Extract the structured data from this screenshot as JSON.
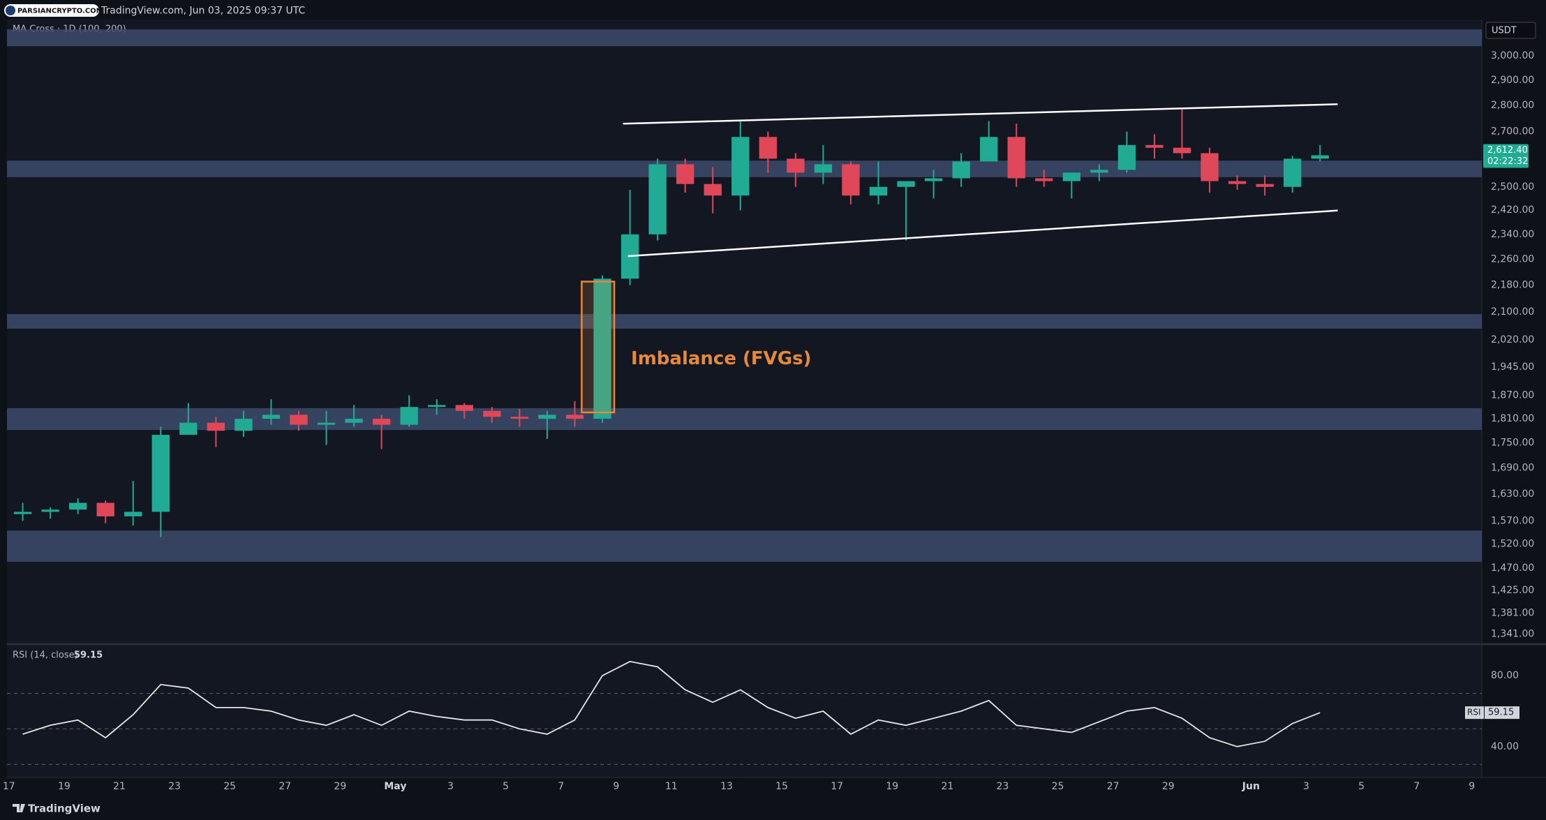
{
  "header": {
    "logo": "PARSIANCRYPTO.COM",
    "source": "TradingView.com, Jun 03, 2025 09:37 UTC"
  },
  "footer": "TradingView",
  "chart_data": [
    {
      "type": "candlestick",
      "indicator_label": "MA Cross · 1D (100, 200)",
      "currency": "USDT",
      "up_color": "#22ab94",
      "down_color": "#e0485a",
      "zone_color": "#3d4b6b",
      "log_scale": true,
      "xlim": [
        -0.07,
        53.36
      ],
      "ylim": [
        1325,
        3156
      ],
      "yticks": [
        {
          "value": 3000,
          "label": "3,000.00"
        },
        {
          "value": 2900,
          "label": "2,900.00"
        },
        {
          "value": 2800,
          "label": "2,800.00"
        },
        {
          "value": 2700,
          "label": "2,700.00"
        },
        {
          "value": 2500,
          "label": "2,500.00"
        },
        {
          "value": 2420,
          "label": "2,420.00"
        },
        {
          "value": 2340,
          "label": "2,340.00"
        },
        {
          "value": 2260,
          "label": "2,260.00"
        },
        {
          "value": 2180,
          "label": "2,180.00"
        },
        {
          "value": 2100,
          "label": "2,100.00"
        },
        {
          "value": 2020,
          "label": "2,020.00"
        },
        {
          "value": 1945,
          "label": "1,945.00"
        },
        {
          "value": 1870,
          "label": "1,870.00"
        },
        {
          "value": 1810,
          "label": "1,810.00"
        },
        {
          "value": 1750,
          "label": "1,750.00"
        },
        {
          "value": 1690,
          "label": "1,690.00"
        },
        {
          "value": 1630,
          "label": "1,630.00"
        },
        {
          "value": 1570,
          "label": "1,570.00"
        },
        {
          "value": 1520,
          "label": "1,520.00"
        },
        {
          "value": 1470,
          "label": "1,470.00"
        },
        {
          "value": 1425,
          "label": "1,425.00"
        },
        {
          "value": 1381,
          "label": "1,381.00"
        },
        {
          "value": 1341,
          "label": "1,341.00"
        }
      ],
      "open": [
        1585,
        1590,
        1595,
        1610,
        1580,
        1590,
        1770,
        1800,
        1780,
        1810,
        1820,
        1795,
        1800,
        1810,
        1795,
        1840,
        1845,
        1830,
        1815,
        1810,
        1820,
        1810,
        2200,
        2340,
        2580,
        2510,
        2470,
        2680,
        2600,
        2550,
        2580,
        2470,
        2500,
        2520,
        2530,
        2590,
        2680,
        2530,
        2520,
        2550,
        2560,
        2650,
        2640,
        2620,
        2520,
        2510,
        2500,
        2600
      ],
      "high": [
        1610,
        1600,
        1620,
        1615,
        1660,
        1790,
        1850,
        1815,
        1830,
        1860,
        1830,
        1830,
        1845,
        1820,
        1870,
        1860,
        1850,
        1840,
        1835,
        1830,
        1855,
        2210,
        2490,
        2600,
        2600,
        2570,
        2740,
        2700,
        2620,
        2650,
        2590,
        2590,
        2520,
        2560,
        2620,
        2740,
        2730,
        2560,
        2550,
        2580,
        2700,
        2690,
        2790,
        2640,
        2540,
        2540,
        2610,
        2650
      ],
      "low": [
        1570,
        1575,
        1585,
        1565,
        1560,
        1535,
        1770,
        1740,
        1765,
        1795,
        1780,
        1745,
        1790,
        1735,
        1790,
        1820,
        1810,
        1800,
        1790,
        1760,
        1790,
        1800,
        2180,
        2320,
        2480,
        2410,
        2420,
        2550,
        2500,
        2510,
        2440,
        2440,
        2320,
        2460,
        2500,
        2590,
        2500,
        2500,
        2460,
        2520,
        2550,
        2600,
        2600,
        2480,
        2490,
        2470,
        2480,
        2590
      ],
      "close": [
        1590,
        1595,
        1610,
        1580,
        1590,
        1770,
        1800,
        1780,
        1810,
        1820,
        1795,
        1800,
        1810,
        1795,
        1840,
        1845,
        1830,
        1815,
        1810,
        1820,
        1810,
        2200,
        2340,
        2580,
        2510,
        2470,
        2680,
        2600,
        2550,
        2580,
        2470,
        2500,
        2520,
        2530,
        2590,
        2680,
        2530,
        2520,
        2550,
        2560,
        2650,
        2640,
        2620,
        2520,
        2510,
        2500,
        2600,
        2612.4
      ],
      "price_label": {
        "value": 2612.4,
        "label": "2,612.40"
      },
      "countdown": "02:22:32",
      "zones": [
        {
          "low": 3041,
          "high": 3113
        },
        {
          "low": 2534,
          "high": 2593
        },
        {
          "low": 2052,
          "high": 2094
        },
        {
          "low": 1782,
          "high": 1837
        },
        {
          "low": 1483,
          "high": 1549
        }
      ],
      "trendlines": [
        {
          "x": [
            22.25,
            48.14
          ],
          "y": [
            2730,
            2805
          ]
        },
        {
          "x": [
            22.43,
            48.14
          ],
          "y": [
            2270,
            2419
          ]
        }
      ],
      "fvg_box": {
        "x": [
          20.75,
          21.93
        ],
        "y": [
          1826,
          2191
        ],
        "label": "Imbalance (FVGs)",
        "color": "#e8893a"
      }
    },
    {
      "type": "line",
      "name": "RSI (14, close)",
      "short_name": "RSI",
      "color": "#e6e6e6",
      "xlim": [
        -0.07,
        53.36
      ],
      "ylim": [
        23,
        97
      ],
      "yticks": [
        {
          "value": 80,
          "label": "80.00"
        },
        {
          "value": 40,
          "label": "40.00"
        }
      ],
      "levels": [
        70,
        50,
        30
      ],
      "values": [
        47,
        52,
        55,
        45,
        58,
        75,
        73,
        62,
        62,
        60,
        55,
        52,
        58,
        52,
        60,
        57,
        55,
        55,
        50,
        47,
        55,
        80,
        88,
        85,
        72,
        65,
        72,
        62,
        56,
        60,
        47,
        55,
        52,
        56,
        60,
        66,
        52,
        50,
        48,
        54,
        60,
        62,
        56,
        45,
        40,
        43,
        53,
        59.15
      ],
      "xticks": [
        {
          "value": 0,
          "label": "17"
        },
        {
          "value": 2,
          "label": "19"
        },
        {
          "value": 4,
          "label": "21"
        },
        {
          "value": 6,
          "label": "23"
        },
        {
          "value": 8,
          "label": "25"
        },
        {
          "value": 10,
          "label": "27"
        },
        {
          "value": 12,
          "label": "29"
        },
        {
          "value": 14,
          "label": "May"
        },
        {
          "value": 16,
          "label": "3"
        },
        {
          "value": 18,
          "label": "5"
        },
        {
          "value": 20,
          "label": "7"
        },
        {
          "value": 22,
          "label": "9"
        },
        {
          "value": 24,
          "label": "11"
        },
        {
          "value": 26,
          "label": "13"
        },
        {
          "value": 28,
          "label": "15"
        },
        {
          "value": 30,
          "label": "17"
        },
        {
          "value": 32,
          "label": "19"
        },
        {
          "value": 34,
          "label": "21"
        },
        {
          "value": 36,
          "label": "23"
        },
        {
          "value": 38,
          "label": "25"
        },
        {
          "value": 40,
          "label": "27"
        },
        {
          "value": 42,
          "label": "29"
        },
        {
          "value": 45,
          "label": "Jun"
        },
        {
          "value": 47,
          "label": "3"
        },
        {
          "value": 49,
          "label": "5"
        },
        {
          "value": 51,
          "label": "7"
        },
        {
          "value": 53,
          "label": "9"
        }
      ]
    }
  ]
}
